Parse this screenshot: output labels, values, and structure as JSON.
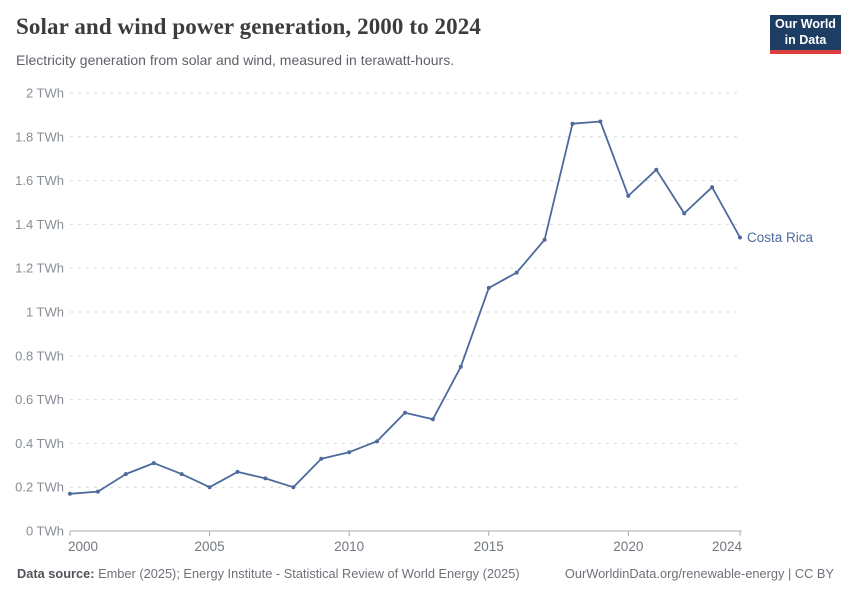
{
  "header": {
    "title": "Solar and wind power generation, 2000 to 2024",
    "subtitle": "Electricity generation from solar and wind, measured in terawatt-hours.",
    "logo": {
      "line1": "Our World",
      "line2": "in Data",
      "bg_color": "#1d3d63",
      "accent_color": "#dc3e40"
    }
  },
  "chart_data": {
    "type": "line",
    "title": "Solar and wind power generation, 2000 to 2024",
    "xlabel": "",
    "ylabel": "",
    "x": [
      2000,
      2001,
      2002,
      2003,
      2004,
      2005,
      2006,
      2007,
      2008,
      2009,
      2010,
      2011,
      2012,
      2013,
      2014,
      2015,
      2016,
      2017,
      2018,
      2019,
      2020,
      2021,
      2022,
      2023,
      2024
    ],
    "series": [
      {
        "name": "Costa Rica",
        "color": "#4c6a9c",
        "values": [
          0.17,
          0.18,
          0.26,
          0.31,
          0.26,
          0.2,
          0.27,
          0.24,
          0.2,
          0.33,
          0.36,
          0.41,
          0.54,
          0.51,
          0.75,
          1.11,
          1.18,
          1.33,
          1.86,
          1.87,
          1.53,
          1.65,
          1.45,
          1.57,
          1.34
        ]
      }
    ],
    "ylim": [
      0,
      2
    ],
    "yticks": [
      0,
      0.2,
      0.4,
      0.6,
      0.8,
      1,
      1.2,
      1.4,
      1.6,
      1.8,
      2
    ],
    "ytick_labels": [
      "0 TWh",
      "0.2 TWh",
      "0.4 TWh",
      "0.6 TWh",
      "0.8 TWh",
      "1 TWh",
      "1.2 TWh",
      "1.4 TWh",
      "1.6 TWh",
      "1.8 TWh",
      "2 TWh"
    ],
    "xticks": [
      2000,
      2005,
      2010,
      2015,
      2020,
      2024
    ],
    "xtick_labels": [
      "2000",
      "2005",
      "2010",
      "2015",
      "2020",
      "2024"
    ],
    "grid": "horizontal-dashed",
    "legend_position": "end-of-line-label",
    "grid_color": "#dadada",
    "axis_color": "#a8acb1",
    "ytick_label_color": "#888e95",
    "xtick_label_color": "#72787f"
  },
  "footer": {
    "source_label": "Data source:",
    "source_text": " Ember (2025); Energy Institute - Statistical Review of World Energy (2025)",
    "link_text": "OurWorldinData.org/renewable-energy | CC BY"
  }
}
